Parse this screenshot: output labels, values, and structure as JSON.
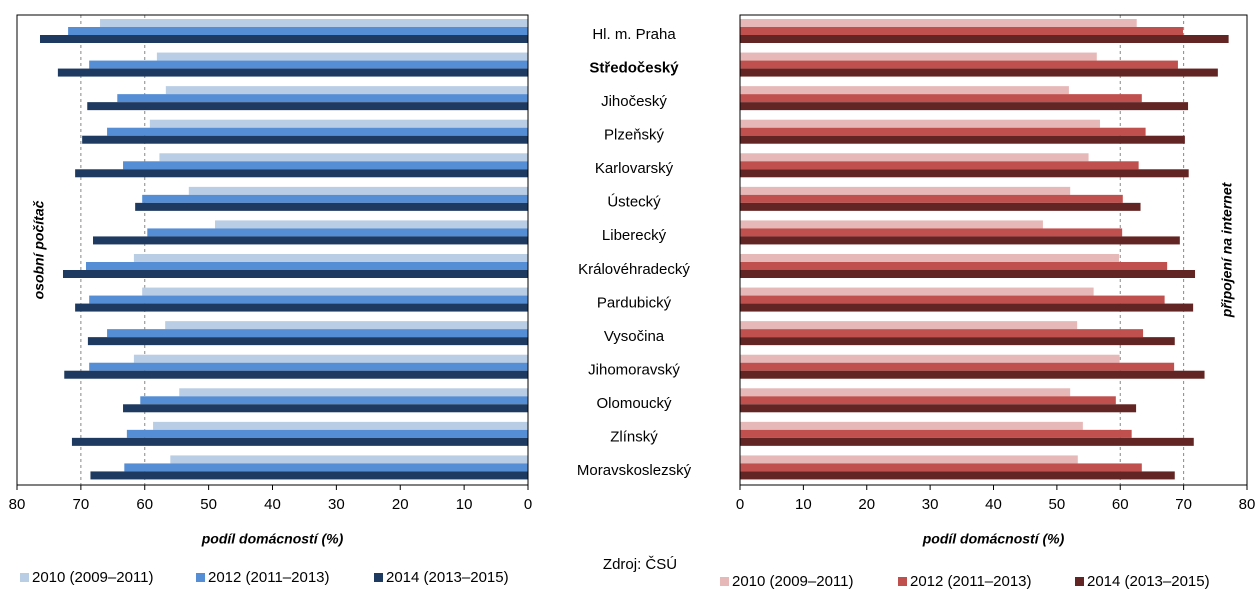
{
  "source": "Zdroj: ČSÚ",
  "highlight": "Středočeský",
  "chart_data": [
    {
      "type": "bar",
      "orientation": "horizontal",
      "x_reversed": true,
      "ylabel": "osobní počítač",
      "xlabel": "podíl domácností (%)",
      "categories": [
        "Hl. m. Praha",
        "Středočeský",
        "Jihočeský",
        "Plzeňský",
        "Karlovarský",
        "Ústecký",
        "Liberecký",
        "Královéhradecký",
        "Pardubický",
        "Vysočina",
        "Jihomoravský",
        "Olomoucký",
        "Zlínský",
        "Moravskoslezský"
      ],
      "xlim": [
        0,
        80
      ],
      "xticks": [
        0,
        10,
        20,
        30,
        40,
        50,
        60,
        70,
        80
      ],
      "grid_lines": [
        60,
        70
      ],
      "series": [
        {
          "name": "2010 (2009–2011)",
          "color": "#b9cde5",
          "values": [
            67.0,
            58.1,
            56.7,
            59.2,
            57.7,
            53.1,
            49.0,
            61.7,
            60.4,
            56.8,
            61.7,
            54.6,
            58.7,
            56.0
          ]
        },
        {
          "name": "2012 (2011–2013)",
          "color": "#558ed5",
          "values": [
            72.0,
            68.7,
            64.3,
            65.9,
            63.4,
            60.4,
            59.6,
            69.2,
            68.7,
            65.9,
            68.7,
            60.7,
            62.8,
            63.2
          ]
        },
        {
          "name": "2014 (2013–2015)",
          "color": "#1f3a60",
          "values": [
            76.4,
            73.6,
            69.0,
            69.8,
            70.9,
            61.5,
            68.1,
            72.8,
            70.9,
            68.9,
            72.6,
            63.4,
            71.4,
            68.5
          ]
        }
      ]
    },
    {
      "type": "bar",
      "orientation": "horizontal",
      "x_reversed": false,
      "ylabel": "připojení na internet",
      "xlabel": "podíl domácností (%)",
      "xlim": [
        0,
        80
      ],
      "xticks": [
        0,
        10,
        20,
        30,
        40,
        50,
        60,
        70,
        80
      ],
      "grid_lines": [
        60,
        70
      ],
      "series": [
        {
          "name": "2010 (2009–2011)",
          "color": "#e6b9b8",
          "values": [
            62.6,
            56.3,
            51.9,
            56.8,
            55.0,
            52.1,
            47.8,
            59.8,
            55.8,
            53.2,
            59.9,
            52.1,
            54.1,
            53.3
          ]
        },
        {
          "name": "2012 (2011–2013)",
          "color": "#c0504d",
          "values": [
            69.9,
            69.1,
            63.4,
            64.0,
            62.9,
            60.4,
            60.3,
            67.4,
            67.0,
            63.6,
            68.5,
            59.3,
            61.8,
            63.4
          ]
        },
        {
          "name": "2014 (2013–2015)",
          "color": "#632523",
          "values": [
            77.1,
            75.4,
            70.7,
            70.2,
            70.8,
            63.2,
            69.4,
            71.8,
            71.5,
            68.6,
            73.3,
            62.5,
            71.6,
            68.6
          ]
        }
      ]
    }
  ]
}
